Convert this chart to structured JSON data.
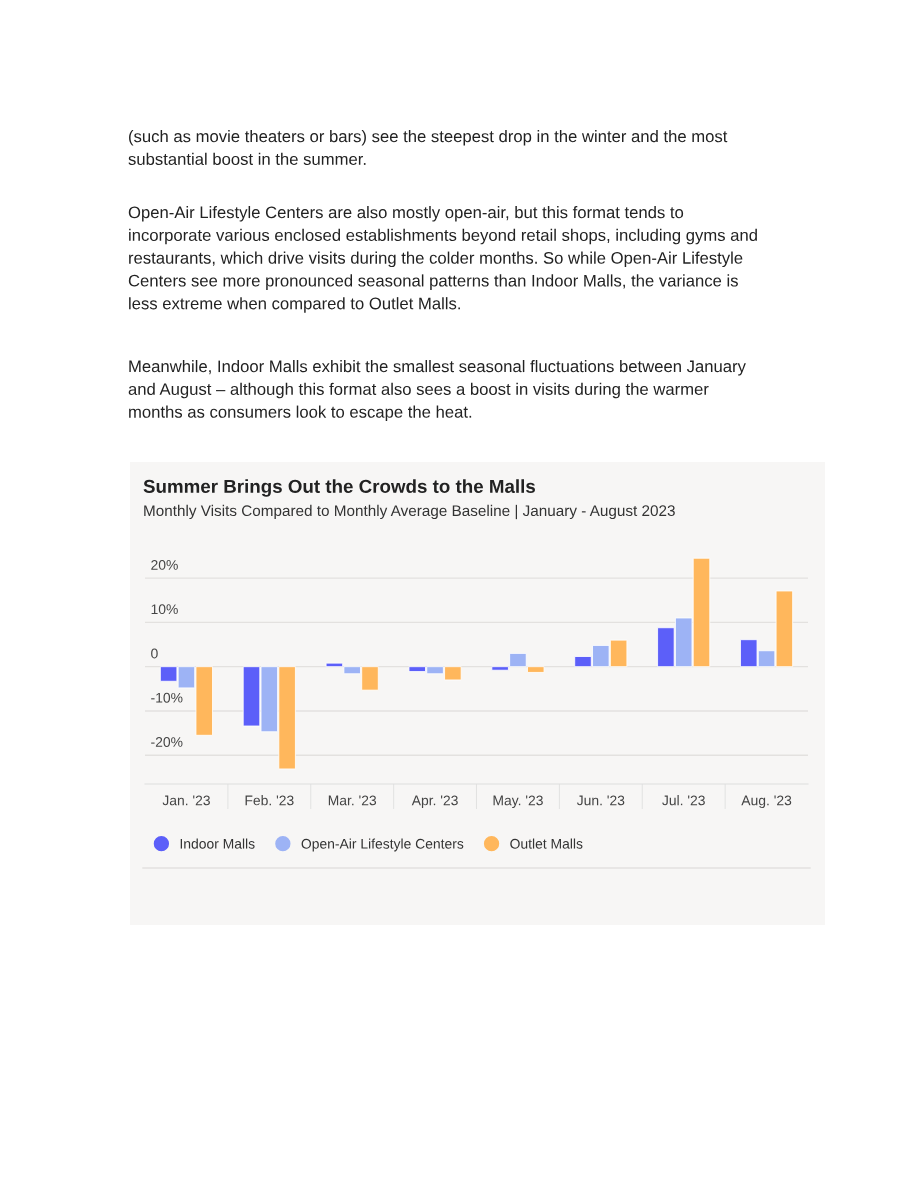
{
  "chart_data": {
    "type": "bar",
    "title": "Summer Brings Out the Crowds to the Malls",
    "subtitle": "Monthly Visits Compared to Monthly Average Baseline | January - August 2023",
    "categories": [
      "Jan. '23",
      "Feb. '23",
      "Mar. '23",
      "Apr. '23",
      "May. '23",
      "Jun. '23",
      "Jul. '23",
      "Aug. '23"
    ],
    "series": [
      {
        "name": "Indoor Malls",
        "color": "#5c5ff9",
        "values": [
          -3.3,
          -13.4,
          0.8,
          -1.1,
          -0.8,
          2.3,
          8.8,
          6.1
        ]
      },
      {
        "name": "Open-Air Lifestyle Centers",
        "color": "#9db3f5",
        "values": [
          -4.8,
          -14.7,
          -1.6,
          -1.6,
          3.0,
          4.8,
          11.0,
          3.6
        ]
      },
      {
        "name": "Outlet Malls",
        "color": "#ffb75c",
        "values": [
          -15.5,
          -23.1,
          -5.3,
          -3.0,
          -1.3,
          6.0,
          24.5,
          17.1
        ]
      }
    ],
    "ylim": [
      -26.5,
      25
    ],
    "yticks": [
      {
        "value": -20,
        "label": "-20%"
      },
      {
        "value": -10,
        "label": "-10%"
      },
      0,
      {
        "value": 10,
        "label": "10%"
      },
      {
        "value": 20,
        "label": "20%"
      }
    ],
    "grid": "y",
    "legend": "bottom",
    "annotations": [
      "(such as movie theaters or bars) see the steepest drop in the winter and the most\nsubstantial boost in the summer.",
      "Open-Air Lifestyle Centers are also mostly open-air, but this format tends to\nincorporate various enclosed establishments beyond retail shops, including gyms and\nrestaurants, which drive visits during the colder months. So while Open-Air Lifestyle\nCenters see more pronounced seasonal patterns than Indoor Malls, the variance is\nless extreme when compared to Outlet Malls.",
      "Meanwhile, Indoor Malls exhibit the smallest seasonal fluctuations between January\nand August – although this format also sees a boost in visits during the warmer\nmonths as consumers look to escape the heat."
    ]
  }
}
